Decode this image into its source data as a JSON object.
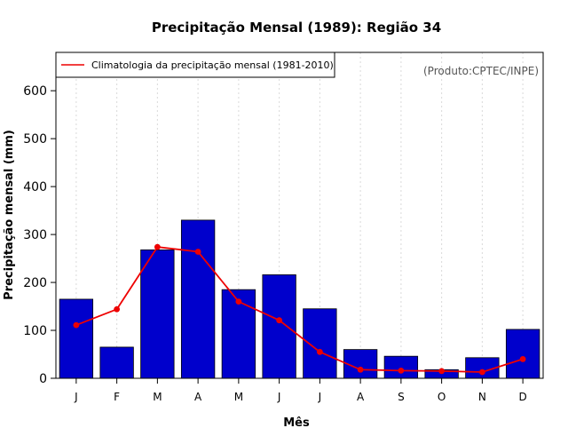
{
  "chart_data": {
    "type": "bar",
    "title": "Precipitação Mensal (1989): Região 34",
    "xlabel": "Mês",
    "ylabel": "Precipitação mensal (mm)",
    "categories": [
      "J",
      "F",
      "M",
      "A",
      "M",
      "J",
      "J",
      "A",
      "S",
      "O",
      "N",
      "D"
    ],
    "ylim": [
      0,
      680
    ],
    "yticks": [
      0,
      100,
      200,
      300,
      400,
      500,
      600
    ],
    "ytick_labels": [
      "0",
      "100",
      "200",
      "300",
      "400",
      "500",
      "600"
    ],
    "grid": "vertical dotted",
    "legend_position": "top-left",
    "series": [
      {
        "name": "Precipitação mensal (1989)",
        "kind": "bar",
        "color": "#0000CC",
        "values": [
          165,
          65,
          268,
          330,
          185,
          216,
          145,
          60,
          46,
          18,
          43,
          102
        ]
      },
      {
        "name": "Climatologia da precipitação mensal (1981-2010)",
        "kind": "line",
        "color": "#EE0000",
        "values": [
          111,
          144,
          274,
          264,
          160,
          121,
          55,
          18,
          16,
          15,
          13,
          40
        ]
      }
    ],
    "annotation": "(Produto:CPTEC/INPE)"
  },
  "colors": {
    "bar": "#0000CC",
    "line": "#EE0000",
    "grid": "#d9d9d9",
    "source_text": "#555555"
  }
}
